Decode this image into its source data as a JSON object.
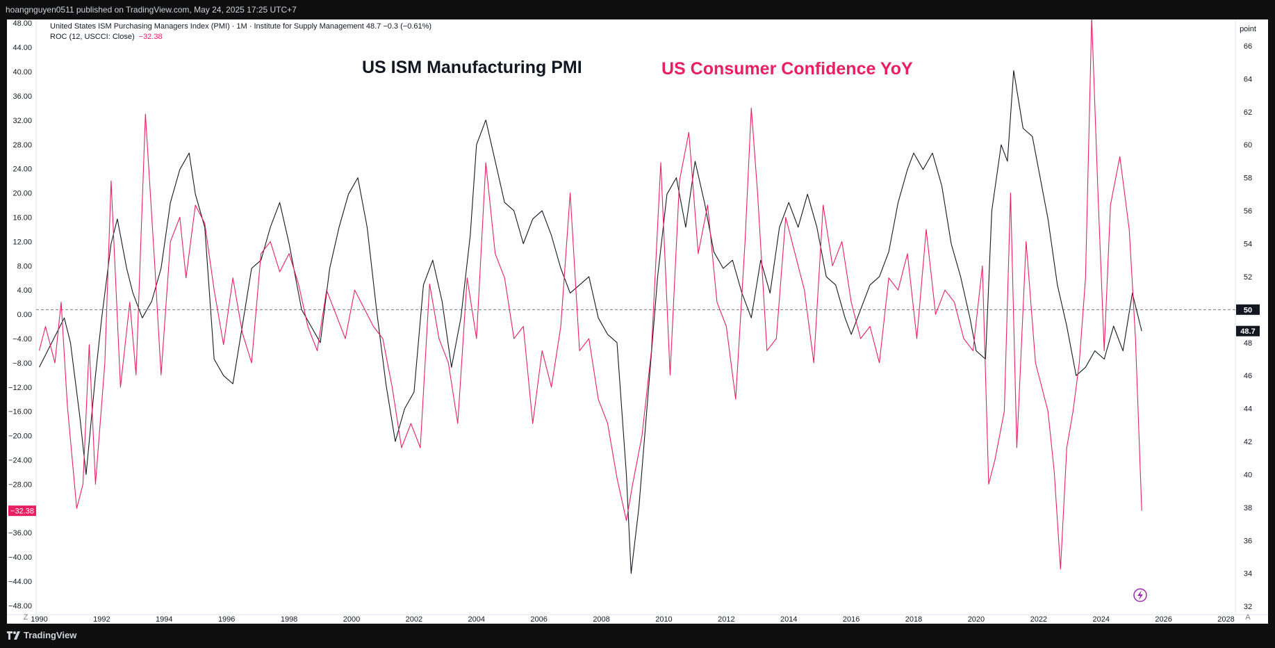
{
  "header": {
    "published_by": "hoangnguyen0511 published on TradingView.com, May 24, 2025 17:25 UTC+7"
  },
  "footer": {
    "brand": "TradingView"
  },
  "legend": {
    "line1": "United States ISM Purchasing Managers Index (PMI) · 1M · Institute for Supply Management  48.7  −0.3 (−0.61%)",
    "line2_prefix": "ROC (12, USCCI: Close)",
    "line2_value": "−32.38"
  },
  "annotations": {
    "pmi": "US ISM Manufacturing PMI",
    "cc": "US Consumer Confidence YoY"
  },
  "right_axis": {
    "unit": "point",
    "current_label": "48.7",
    "ref_label": "50"
  },
  "left_axis": {
    "current_label": "−32.38"
  },
  "corner_labels": {
    "bottom_left": "Z",
    "bottom_right": "A"
  },
  "colors": {
    "pmi": "#131722",
    "cc": "#e91e63",
    "grid_ref": "#787b86"
  },
  "chart_data": {
    "type": "line",
    "x_unit": "year",
    "xlim": [
      1989.9,
      2028.3
    ],
    "x_ticks": [
      "1990",
      "1992",
      "1994",
      "1996",
      "1998",
      "2000",
      "2002",
      "2004",
      "2006",
      "2008",
      "2010",
      "2012",
      "2014",
      "2016",
      "2018",
      "2020",
      "2022",
      "2024",
      "2026",
      "2028"
    ],
    "left_axis": {
      "range": [
        -49.5,
        48.6
      ],
      "ticks": [
        "48.00",
        "44.00",
        "40.00",
        "36.00",
        "32.00",
        "28.00",
        "24.00",
        "20.00",
        "16.00",
        "12.00",
        "8.00",
        "4.00",
        "0.00",
        "-4.00",
        "-8.00",
        "-12.00",
        "-16.00",
        "-20.00",
        "-24.00",
        "-28.00",
        "-36.00",
        "-40.00",
        "-44.00",
        "-48.00"
      ]
    },
    "right_axis": {
      "range": [
        31.5,
        67.6
      ],
      "ticks": [
        "66",
        "64",
        "62",
        "60",
        "58",
        "56",
        "54",
        "52",
        "50",
        "48",
        "46",
        "44",
        "42",
        "40",
        "38",
        "36",
        "34",
        "32"
      ],
      "reference_line": 50
    },
    "series": [
      {
        "name": "United States ISM Purchasing Managers Index (PMI)",
        "axis": "right",
        "x": [
          1990.0,
          1990.4,
          1990.8,
          1991.0,
          1991.3,
          1991.5,
          1991.8,
          1992.0,
          1992.3,
          1992.5,
          1992.8,
          1993.0,
          1993.3,
          1993.6,
          1993.9,
          1994.2,
          1994.5,
          1994.8,
          1995.0,
          1995.3,
          1995.6,
          1995.9,
          1996.2,
          1996.5,
          1996.8,
          1997.1,
          1997.4,
          1997.7,
          1998.0,
          1998.4,
          1998.7,
          1999.0,
          1999.3,
          1999.6,
          1999.9,
          2000.2,
          2000.5,
          2000.8,
          2001.1,
          2001.4,
          2001.7,
          2002.0,
          2002.3,
          2002.6,
          2002.9,
          2003.2,
          2003.5,
          2003.8,
          2004.0,
          2004.3,
          2004.6,
          2004.9,
          2005.2,
          2005.5,
          2005.8,
          2006.1,
          2006.4,
          2006.7,
          2007.0,
          2007.3,
          2007.6,
          2007.9,
          2008.2,
          2008.5,
          2008.8,
          2008.95,
          2009.2,
          2009.5,
          2009.8,
          2010.1,
          2010.4,
          2010.7,
          2011.0,
          2011.3,
          2011.6,
          2011.9,
          2012.2,
          2012.5,
          2012.8,
          2013.1,
          2013.4,
          2013.7,
          2014.0,
          2014.3,
          2014.6,
          2014.9,
          2015.2,
          2015.5,
          2015.8,
          2016.0,
          2016.3,
          2016.6,
          2016.9,
          2017.2,
          2017.5,
          2017.8,
          2018.0,
          2018.3,
          2018.6,
          2018.9,
          2019.2,
          2019.5,
          2019.8,
          2020.0,
          2020.3,
          2020.5,
          2020.8,
          2021.0,
          2021.2,
          2021.5,
          2021.8,
          2022.0,
          2022.3,
          2022.6,
          2022.9,
          2023.2,
          2023.5,
          2023.8,
          2024.1,
          2024.4,
          2024.7,
          2025.0,
          2025.3
        ],
        "values": [
          46.5,
          48.0,
          49.5,
          48.0,
          43.5,
          40.0,
          46.0,
          49.5,
          54.0,
          55.5,
          52.5,
          51.0,
          49.5,
          50.5,
          52.5,
          56.5,
          58.5,
          59.5,
          57.0,
          55.0,
          47.0,
          46.0,
          45.5,
          49.0,
          52.5,
          53.0,
          55.0,
          56.5,
          54.0,
          50.0,
          49.0,
          48.0,
          52.5,
          55.0,
          57.0,
          58.0,
          55.0,
          50.0,
          45.5,
          42.0,
          44.0,
          45.0,
          51.5,
          53.0,
          50.5,
          46.5,
          49.5,
          54.5,
          60.0,
          61.5,
          59.0,
          56.5,
          56.0,
          54.0,
          55.5,
          56.0,
          54.5,
          52.5,
          51.0,
          51.5,
          52.0,
          49.5,
          48.5,
          48.0,
          40.0,
          34.0,
          38.0,
          45.0,
          52.0,
          57.0,
          58.0,
          55.0,
          59.0,
          56.5,
          53.5,
          52.5,
          53.0,
          51.0,
          49.5,
          53.0,
          51.0,
          55.0,
          56.5,
          55.0,
          57.0,
          55.0,
          52.0,
          51.5,
          49.5,
          48.5,
          50.0,
          51.5,
          52.0,
          53.5,
          56.5,
          58.5,
          59.5,
          58.5,
          59.5,
          57.5,
          54.0,
          52.0,
          49.5,
          47.5,
          47.0,
          56.0,
          60.0,
          59.0,
          64.5,
          61.0,
          60.5,
          58.5,
          55.5,
          51.5,
          49.0,
          46.0,
          46.5,
          47.5,
          47.0,
          49.0,
          47.5,
          51.0,
          48.7
        ]
      },
      {
        "name": "ROC (12, USCCI: Close)",
        "axis": "left",
        "x": [
          1990.0,
          1990.2,
          1990.5,
          1990.7,
          1990.9,
          1991.2,
          1991.4,
          1991.6,
          1991.8,
          1992.1,
          1992.3,
          1992.6,
          1992.9,
          1993.1,
          1993.4,
          1993.7,
          1993.9,
          1994.2,
          1994.5,
          1994.7,
          1995.0,
          1995.3,
          1995.6,
          1995.9,
          1996.2,
          1996.5,
          1996.8,
          1997.1,
          1997.4,
          1997.7,
          1998.0,
          1998.3,
          1998.6,
          1998.9,
          1999.2,
          1999.5,
          1999.8,
          2000.1,
          2000.4,
          2000.7,
          2001.0,
          2001.3,
          2001.6,
          2001.9,
          2002.2,
          2002.5,
          2002.8,
          2003.1,
          2003.4,
          2003.7,
          2004.0,
          2004.3,
          2004.6,
          2004.9,
          2005.2,
          2005.5,
          2005.8,
          2006.1,
          2006.4,
          2006.7,
          2007.0,
          2007.3,
          2007.6,
          2007.9,
          2008.2,
          2008.5,
          2008.8,
          2009.0,
          2009.3,
          2009.6,
          2009.9,
          2010.2,
          2010.5,
          2010.8,
          2011.1,
          2011.4,
          2011.7,
          2012.0,
          2012.3,
          2012.6,
          2012.8,
          2013.0,
          2013.3,
          2013.6,
          2013.9,
          2014.2,
          2014.5,
          2014.8,
          2015.1,
          2015.4,
          2015.7,
          2016.0,
          2016.3,
          2016.6,
          2016.9,
          2017.2,
          2017.5,
          2017.8,
          2018.1,
          2018.4,
          2018.7,
          2019.0,
          2019.3,
          2019.6,
          2019.9,
          2020.2,
          2020.4,
          2020.6,
          2020.9,
          2021.1,
          2021.3,
          2021.6,
          2021.9,
          2022.1,
          2022.3,
          2022.5,
          2022.7,
          2022.9,
          2023.1,
          2023.3,
          2023.5,
          2023.7,
          2023.9,
          2024.1,
          2024.3,
          2024.6,
          2024.9,
          2025.1,
          2025.3
        ],
        "values": [
          -6.0,
          -2.0,
          -8.0,
          2.0,
          -15.0,
          -32.0,
          -28.0,
          -5.0,
          -28.0,
          -8.0,
          22.0,
          -12.0,
          2.0,
          -10.0,
          33.0,
          8.0,
          -10.0,
          12.0,
          16.0,
          6.0,
          18.0,
          15.0,
          4.0,
          -5.0,
          6.0,
          -3.0,
          -8.0,
          10.0,
          12.0,
          7.0,
          10.0,
          5.0,
          -2.0,
          -6.0,
          4.0,
          0.0,
          -4.0,
          4.0,
          1.0,
          -2.0,
          -4.0,
          -12.0,
          -22.0,
          -18.0,
          -22.0,
          5.0,
          -4.0,
          -8.0,
          -18.0,
          6.0,
          -4.0,
          25.0,
          10.0,
          6.0,
          -4.0,
          -2.0,
          -18.0,
          -6.0,
          -12.0,
          -2.0,
          20.0,
          -6.0,
          -4.0,
          -14.0,
          -18.0,
          -27.0,
          -34.0,
          -28.0,
          -20.0,
          -6.0,
          25.0,
          -10.0,
          22.0,
          30.0,
          10.0,
          18.0,
          2.0,
          -2.0,
          -14.0,
          12.0,
          34.0,
          20.0,
          -6.0,
          -4.0,
          16.0,
          10.0,
          4.0,
          -8.0,
          18.0,
          8.0,
          12.0,
          2.0,
          -4.0,
          -2.0,
          -8.0,
          6.0,
          4.0,
          10.0,
          -4.0,
          14.0,
          0.0,
          4.0,
          2.0,
          -4.0,
          -6.0,
          8.0,
          -28.0,
          -24.0,
          -16.0,
          20.0,
          -22.0,
          12.0,
          -8.0,
          -12.0,
          -16.0,
          -26.0,
          -42.0,
          -22.0,
          -16.0,
          -8.0,
          6.0,
          49.0,
          20.0,
          -6.0,
          18.0,
          26.0,
          14.0,
          -4.0,
          -32.38
        ]
      }
    ]
  }
}
